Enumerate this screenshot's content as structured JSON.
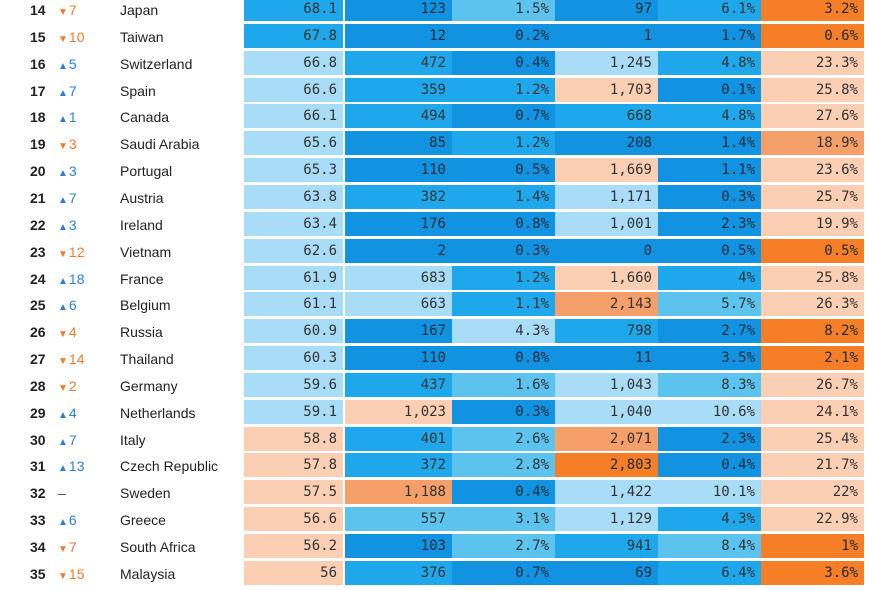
{
  "legend": {
    "up_color": "#2a80d8",
    "down_color": "#f07a2c",
    "up_symbol": "▲",
    "down_symbol": "▼"
  },
  "palette": {
    "pale_blue": "#a9dcf6",
    "light_blue": "#5cc3ee",
    "mid_blue": "#1ea7ea",
    "deep_blue": "#1193e1",
    "pale_peach": "#fbcfb4",
    "orange_light": "#f5a06a",
    "orange": "#f57e27"
  },
  "rows": [
    {
      "rank": "14",
      "dir": "down",
      "delta": "7",
      "country": "Japan",
      "cells": [
        {
          "v": "68.1",
          "c": "mid_blue"
        },
        {
          "v": "123",
          "c": "deep_blue"
        },
        {
          "v": "1.5%",
          "c": "light_blue"
        },
        {
          "v": "97",
          "c": "deep_blue"
        },
        {
          "v": "6.1%",
          "c": "mid_blue"
        },
        {
          "v": "3.2%",
          "c": "orange"
        }
      ]
    },
    {
      "rank": "15",
      "dir": "down",
      "delta": "10",
      "country": "Taiwan",
      "cells": [
        {
          "v": "67.8",
          "c": "mid_blue"
        },
        {
          "v": "12",
          "c": "deep_blue"
        },
        {
          "v": "0.2%",
          "c": "deep_blue"
        },
        {
          "v": "1",
          "c": "deep_blue"
        },
        {
          "v": "1.7%",
          "c": "deep_blue"
        },
        {
          "v": "0.6%",
          "c": "orange"
        }
      ]
    },
    {
      "rank": "16",
      "dir": "up",
      "delta": "5",
      "country": "Switzerland",
      "cells": [
        {
          "v": "66.8",
          "c": "pale_blue"
        },
        {
          "v": "472",
          "c": "mid_blue"
        },
        {
          "v": "0.4%",
          "c": "deep_blue"
        },
        {
          "v": "1,245",
          "c": "pale_blue"
        },
        {
          "v": "4.8%",
          "c": "mid_blue"
        },
        {
          "v": "23.3%",
          "c": "pale_peach"
        }
      ]
    },
    {
      "rank": "17",
      "dir": "up",
      "delta": "7",
      "country": "Spain",
      "cells": [
        {
          "v": "66.6",
          "c": "pale_blue"
        },
        {
          "v": "359",
          "c": "mid_blue"
        },
        {
          "v": "1.2%",
          "c": "mid_blue"
        },
        {
          "v": "1,703",
          "c": "pale_peach"
        },
        {
          "v": "0.1%",
          "c": "deep_blue"
        },
        {
          "v": "25.8%",
          "c": "pale_peach"
        }
      ]
    },
    {
      "rank": "18",
      "dir": "up",
      "delta": "1",
      "country": "Canada",
      "cells": [
        {
          "v": "66.1",
          "c": "pale_blue"
        },
        {
          "v": "494",
          "c": "mid_blue"
        },
        {
          "v": "0.7%",
          "c": "deep_blue"
        },
        {
          "v": "668",
          "c": "mid_blue"
        },
        {
          "v": "4.8%",
          "c": "mid_blue"
        },
        {
          "v": "27.6%",
          "c": "pale_peach"
        }
      ]
    },
    {
      "rank": "19",
      "dir": "down",
      "delta": "3",
      "country": "Saudi Arabia",
      "cells": [
        {
          "v": "65.6",
          "c": "pale_blue"
        },
        {
          "v": "85",
          "c": "deep_blue"
        },
        {
          "v": "1.2%",
          "c": "mid_blue"
        },
        {
          "v": "208",
          "c": "deep_blue"
        },
        {
          "v": "1.4%",
          "c": "deep_blue"
        },
        {
          "v": "18.9%",
          "c": "orange_light"
        }
      ]
    },
    {
      "rank": "20",
      "dir": "up",
      "delta": "3",
      "country": "Portugal",
      "cells": [
        {
          "v": "65.3",
          "c": "pale_blue"
        },
        {
          "v": "110",
          "c": "deep_blue"
        },
        {
          "v": "0.5%",
          "c": "deep_blue"
        },
        {
          "v": "1,669",
          "c": "pale_peach"
        },
        {
          "v": "1.1%",
          "c": "deep_blue"
        },
        {
          "v": "23.6%",
          "c": "pale_peach"
        }
      ]
    },
    {
      "rank": "21",
      "dir": "up",
      "delta": "7",
      "country": "Austria",
      "cells": [
        {
          "v": "63.8",
          "c": "pale_blue"
        },
        {
          "v": "382",
          "c": "mid_blue"
        },
        {
          "v": "1.4%",
          "c": "mid_blue"
        },
        {
          "v": "1,171",
          "c": "pale_blue"
        },
        {
          "v": "0.3%",
          "c": "deep_blue"
        },
        {
          "v": "25.7%",
          "c": "pale_peach"
        }
      ]
    },
    {
      "rank": "22",
      "dir": "up",
      "delta": "3",
      "country": "Ireland",
      "cells": [
        {
          "v": "63.4",
          "c": "pale_blue"
        },
        {
          "v": "176",
          "c": "deep_blue"
        },
        {
          "v": "0.8%",
          "c": "deep_blue"
        },
        {
          "v": "1,001",
          "c": "pale_blue"
        },
        {
          "v": "2.3%",
          "c": "deep_blue"
        },
        {
          "v": "19.9%",
          "c": "pale_peach"
        }
      ]
    },
    {
      "rank": "23",
      "dir": "down",
      "delta": "12",
      "country": "Vietnam",
      "cells": [
        {
          "v": "62.6",
          "c": "pale_blue"
        },
        {
          "v": "2",
          "c": "deep_blue"
        },
        {
          "v": "0.3%",
          "c": "deep_blue"
        },
        {
          "v": "0",
          "c": "deep_blue"
        },
        {
          "v": "0.5%",
          "c": "deep_blue"
        },
        {
          "v": "0.5%",
          "c": "orange"
        }
      ]
    },
    {
      "rank": "24",
      "dir": "up",
      "delta": "18",
      "country": "France",
      "cells": [
        {
          "v": "61.9",
          "c": "pale_blue"
        },
        {
          "v": "683",
          "c": "pale_blue"
        },
        {
          "v": "1.2%",
          "c": "mid_blue"
        },
        {
          "v": "1,660",
          "c": "pale_peach"
        },
        {
          "v": "4%",
          "c": "mid_blue"
        },
        {
          "v": "25.8%",
          "c": "pale_peach"
        }
      ]
    },
    {
      "rank": "25",
      "dir": "up",
      "delta": "6",
      "country": "Belgium",
      "cells": [
        {
          "v": "61.1",
          "c": "pale_blue"
        },
        {
          "v": "663",
          "c": "pale_blue"
        },
        {
          "v": "1.1%",
          "c": "mid_blue"
        },
        {
          "v": "2,143",
          "c": "orange_light"
        },
        {
          "v": "5.7%",
          "c": "light_blue"
        },
        {
          "v": "26.3%",
          "c": "pale_peach"
        }
      ]
    },
    {
      "rank": "26",
      "dir": "down",
      "delta": "4",
      "country": "Russia",
      "cells": [
        {
          "v": "60.9",
          "c": "pale_blue"
        },
        {
          "v": "167",
          "c": "deep_blue"
        },
        {
          "v": "4.3%",
          "c": "pale_blue"
        },
        {
          "v": "798",
          "c": "mid_blue"
        },
        {
          "v": "2.7%",
          "c": "deep_blue"
        },
        {
          "v": "8.2%",
          "c": "orange"
        }
      ]
    },
    {
      "rank": "27",
      "dir": "down",
      "delta": "14",
      "country": "Thailand",
      "cells": [
        {
          "v": "60.3",
          "c": "pale_blue"
        },
        {
          "v": "110",
          "c": "deep_blue"
        },
        {
          "v": "0.8%",
          "c": "deep_blue"
        },
        {
          "v": "11",
          "c": "deep_blue"
        },
        {
          "v": "3.5%",
          "c": "deep_blue"
        },
        {
          "v": "2.1%",
          "c": "orange"
        }
      ]
    },
    {
      "rank": "28",
      "dir": "down",
      "delta": "2",
      "country": "Germany",
      "cells": [
        {
          "v": "59.6",
          "c": "pale_blue"
        },
        {
          "v": "437",
          "c": "mid_blue"
        },
        {
          "v": "1.6%",
          "c": "light_blue"
        },
        {
          "v": "1,043",
          "c": "pale_blue"
        },
        {
          "v": "8.3%",
          "c": "light_blue"
        },
        {
          "v": "26.7%",
          "c": "pale_peach"
        }
      ]
    },
    {
      "rank": "29",
      "dir": "up",
      "delta": "4",
      "country": "Netherlands",
      "cells": [
        {
          "v": "59.1",
          "c": "pale_blue"
        },
        {
          "v": "1,023",
          "c": "pale_peach"
        },
        {
          "v": "0.3%",
          "c": "deep_blue"
        },
        {
          "v": "1,040",
          "c": "pale_blue"
        },
        {
          "v": "10.6%",
          "c": "pale_blue"
        },
        {
          "v": "24.1%",
          "c": "pale_peach"
        }
      ]
    },
    {
      "rank": "30",
      "dir": "up",
      "delta": "7",
      "country": "Italy",
      "cells": [
        {
          "v": "58.8",
          "c": "pale_peach"
        },
        {
          "v": "401",
          "c": "mid_blue"
        },
        {
          "v": "2.6%",
          "c": "light_blue"
        },
        {
          "v": "2,071",
          "c": "orange_light"
        },
        {
          "v": "2.3%",
          "c": "deep_blue"
        },
        {
          "v": "25.4%",
          "c": "pale_peach"
        }
      ]
    },
    {
      "rank": "31",
      "dir": "up",
      "delta": "13",
      "country": "Czech Republic",
      "cells": [
        {
          "v": "57.8",
          "c": "pale_peach"
        },
        {
          "v": "372",
          "c": "mid_blue"
        },
        {
          "v": "2.8%",
          "c": "light_blue"
        },
        {
          "v": "2,803",
          "c": "orange"
        },
        {
          "v": "0.4%",
          "c": "deep_blue"
        },
        {
          "v": "21.7%",
          "c": "pale_peach"
        }
      ]
    },
    {
      "rank": "32",
      "dir": "none",
      "delta": "–",
      "country": "Sweden",
      "cells": [
        {
          "v": "57.5",
          "c": "pale_peach"
        },
        {
          "v": "1,188",
          "c": "orange_light"
        },
        {
          "v": "0.4%",
          "c": "deep_blue"
        },
        {
          "v": "1,422",
          "c": "pale_blue"
        },
        {
          "v": "10.1%",
          "c": "pale_blue"
        },
        {
          "v": "22%",
          "c": "pale_peach"
        }
      ]
    },
    {
      "rank": "33",
      "dir": "up",
      "delta": "6",
      "country": "Greece",
      "cells": [
        {
          "v": "56.6",
          "c": "pale_peach"
        },
        {
          "v": "557",
          "c": "light_blue"
        },
        {
          "v": "3.1%",
          "c": "light_blue"
        },
        {
          "v": "1,129",
          "c": "pale_blue"
        },
        {
          "v": "4.3%",
          "c": "mid_blue"
        },
        {
          "v": "22.9%",
          "c": "pale_peach"
        }
      ]
    },
    {
      "rank": "34",
      "dir": "down",
      "delta": "7",
      "country": "South Africa",
      "cells": [
        {
          "v": "56.2",
          "c": "pale_peach"
        },
        {
          "v": "103",
          "c": "deep_blue"
        },
        {
          "v": "2.7%",
          "c": "light_blue"
        },
        {
          "v": "941",
          "c": "mid_blue"
        },
        {
          "v": "8.4%",
          "c": "light_blue"
        },
        {
          "v": "1%",
          "c": "orange"
        }
      ]
    },
    {
      "rank": "35",
      "dir": "down",
      "delta": "15",
      "country": "Malaysia",
      "cells": [
        {
          "v": "56",
          "c": "pale_peach"
        },
        {
          "v": "376",
          "c": "mid_blue"
        },
        {
          "v": "0.7%",
          "c": "deep_blue"
        },
        {
          "v": "69",
          "c": "deep_blue"
        },
        {
          "v": "6.4%",
          "c": "mid_blue"
        },
        {
          "v": "3.6%",
          "c": "orange"
        }
      ]
    }
  ]
}
